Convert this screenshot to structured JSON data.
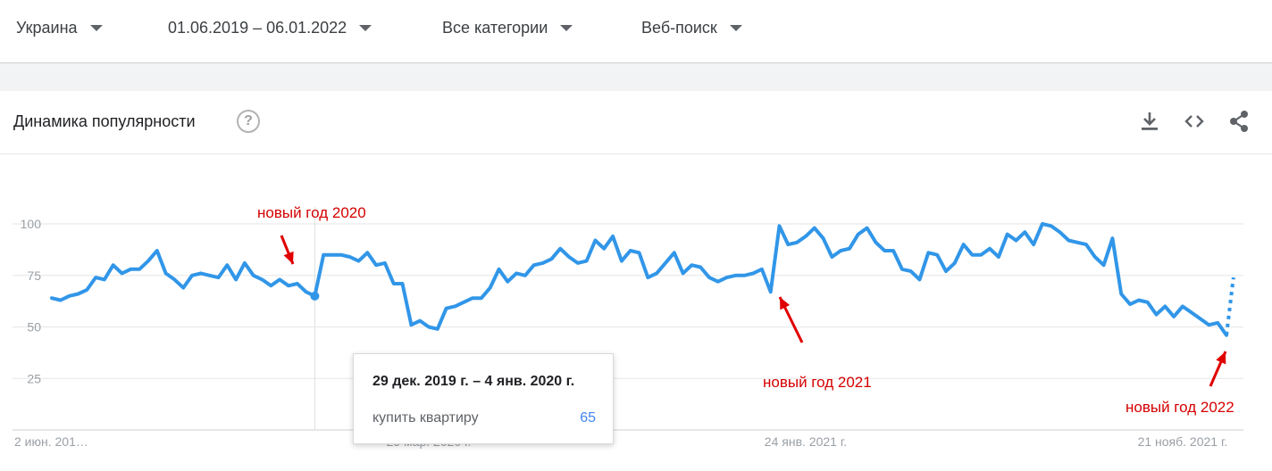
{
  "filters": {
    "region": "Украина",
    "date_range": "01.06.2019 – 06.01.2022",
    "category": "Все категории",
    "search_type": "Веб-поиск"
  },
  "card": {
    "title": "Динамика популярности",
    "help_symbol": "?",
    "icons": [
      "download-icon",
      "embed-icon",
      "share-icon"
    ]
  },
  "colors": {
    "line": "#3196e8",
    "annotation": "#e00000",
    "grid": "#e6e6e6",
    "axis_text": "#9aa0a6"
  },
  "tooltip": {
    "date": "29 дек. 2019 г. – 4 янв. 2020 г.",
    "term": "купить квартиру",
    "value": "65"
  },
  "annotations": [
    {
      "text": "новый год 2020",
      "points_to_index": 30
    },
    {
      "text": "новый год 2021",
      "points_to_index": 82
    },
    {
      "text": "новый год 2022",
      "points_to_index": 135
    }
  ],
  "chart_data": {
    "type": "line",
    "series": [
      {
        "name": "купить квартиру",
        "values": [
          64,
          63,
          65,
          66,
          68,
          74,
          73,
          80,
          76,
          78,
          78,
          82,
          87,
          76,
          73,
          69,
          75,
          76,
          75,
          74,
          80,
          73,
          81,
          75,
          73,
          70,
          73,
          70,
          71,
          67,
          65,
          85,
          85,
          85,
          84,
          82,
          86,
          80,
          81,
          71,
          71,
          51,
          53,
          50,
          49,
          59,
          60,
          62,
          64,
          64,
          69,
          78,
          72,
          76,
          75,
          80,
          81,
          83,
          88,
          84,
          81,
          82,
          92,
          88,
          94,
          82,
          87,
          86,
          74,
          76,
          81,
          86,
          76,
          80,
          79,
          74,
          72,
          74,
          75,
          75,
          76,
          78,
          67,
          99,
          90,
          91,
          94,
          98,
          93,
          84,
          87,
          88,
          95,
          98,
          91,
          87,
          87,
          78,
          77,
          73,
          86,
          85,
          77,
          81,
          90,
          85,
          85,
          88,
          84,
          95,
          92,
          96,
          90,
          100,
          99,
          96,
          92,
          91,
          90,
          84,
          80,
          93,
          66,
          61,
          63,
          62,
          56,
          60,
          55,
          60,
          57,
          54,
          51,
          52,
          46
        ],
        "partial_values": [
          46,
          74
        ]
      }
    ],
    "y_ticks": [
      25,
      50,
      75,
      100
    ],
    "ylim": [
      0,
      100
    ],
    "x_tick_labels": [
      "2 июн. 201…",
      "29 мар. 2020 г.",
      "24 янв. 2021 г.",
      "21 нояб. 2021 г."
    ],
    "x_tick_indices": [
      0,
      43,
      86,
      129
    ],
    "highlight_index": 30,
    "grid": true,
    "legend": "none"
  }
}
